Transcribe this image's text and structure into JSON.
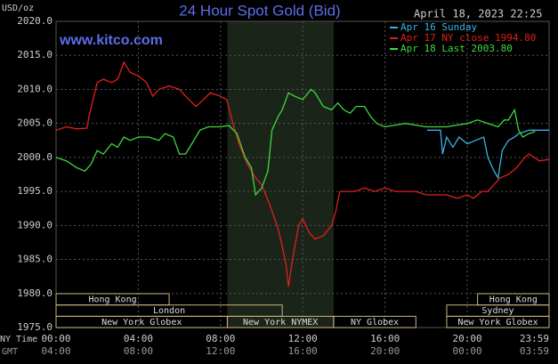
{
  "chart_data": {
    "type": "line",
    "title": "24 Hour Spot Gold (Bid)",
    "timestamp": "April 18, 2023 22:25",
    "y_label": "USD/oz",
    "source": "www.kitco.com",
    "x_label": "NY Time",
    "x2_label": "GMT",
    "xlim": [
      0,
      23.98
    ],
    "xticks": [
      {
        "value": 0,
        "label": "00:00"
      },
      {
        "value": 4,
        "label": "04:00"
      },
      {
        "value": 8,
        "label": "08:00"
      },
      {
        "value": 12,
        "label": "12:00"
      },
      {
        "value": 16,
        "label": "16:00"
      },
      {
        "value": 20,
        "label": "20:00"
      },
      {
        "value": 23.98,
        "label": "23:59"
      }
    ],
    "x2ticklabels": [
      "04:00",
      "08:00",
      "12:00",
      "16:00",
      "20:00",
      "00:00",
      "03:59"
    ],
    "ylim": [
      1975,
      2020
    ],
    "yticks": [
      {
        "value": 1975,
        "label": "1975.0"
      },
      {
        "value": 1980,
        "label": "1980.0"
      },
      {
        "value": 1985,
        "label": "1985.0"
      },
      {
        "value": 1990,
        "label": "1990.0"
      },
      {
        "value": 1995,
        "label": "1995.0"
      },
      {
        "value": 2000,
        "label": "2000.0"
      },
      {
        "value": 2005,
        "label": "2005.0"
      },
      {
        "value": 2010,
        "label": "2010.0"
      },
      {
        "value": 2015,
        "label": "2015.0"
      },
      {
        "value": 2020,
        "label": "2020.0"
      }
    ],
    "grid": true,
    "shade": [
      8.33,
      13.5
    ],
    "series": [
      {
        "name": "Apr 16 Sunday",
        "color": "#33b5e5",
        "x": [
          18.05,
          18.7,
          18.8,
          19,
          19.3,
          19.6,
          20,
          20.4,
          20.8,
          21,
          21.3,
          21.5,
          21.7,
          22,
          22.3,
          22.5,
          23,
          23.5,
          23.98
        ],
        "values": [
          2004,
          2004,
          2000.5,
          2003,
          2001.5,
          2003,
          2002,
          2002.5,
          2003,
          2000,
          1998,
          1997,
          2001,
          2002.5,
          2003,
          2003.5,
          2004,
          2004,
          2004
        ]
      },
      {
        "name": "Apr 17 NY close 1994.80",
        "color": "#e0201b",
        "x": [
          0,
          0.5,
          1,
          1.5,
          1.6,
          2,
          2.3,
          2.7,
          3,
          3.3,
          3.6,
          4,
          4.4,
          4.7,
          5,
          5.5,
          6,
          6.3,
          6.8,
          7,
          7.5,
          8,
          8.3,
          8.6,
          8.9,
          9.3,
          9.7,
          10,
          10.4,
          10.8,
          11,
          11.2,
          11.3,
          11.5,
          11.8,
          12,
          12.3,
          12.6,
          13,
          13.4,
          13.6,
          13.8,
          14,
          14.5,
          15,
          15.5,
          16,
          16.5,
          17,
          17.5,
          18,
          18.5,
          19,
          19.5,
          20,
          20.3,
          20.7,
          21,
          21.3,
          21.6,
          22,
          22.4,
          22.8,
          23,
          23.5,
          23.98
        ],
        "values": [
          2004,
          2004.5,
          2004.2,
          2004.3,
          2006,
          2011,
          2011.5,
          2011,
          2011.5,
          2014,
          2012.5,
          2012,
          2011,
          2009,
          2010,
          2010.5,
          2010,
          2009,
          2007.5,
          2008,
          2009.5,
          2009,
          2008.5,
          2005,
          2002,
          1999,
          1997,
          1996,
          1993,
          1989.5,
          1987,
          1984,
          1981,
          1985,
          1990,
          1991,
          1989,
          1988,
          1988.5,
          1990,
          1992,
          1995,
          1995,
          1995,
          1995.5,
          1995,
          1995.5,
          1995,
          1995,
          1995,
          1994.5,
          1994.5,
          1994.5,
          1994,
          1994.5,
          1994,
          1995,
          1995,
          1996,
          1997,
          1997.5,
          1998.5,
          2000,
          2000.5,
          1999.5,
          1999.7
        ]
      },
      {
        "name": "Apr 18 Last 2003.80",
        "color": "#3fd83f",
        "x": [
          0,
          0.5,
          1,
          1.4,
          1.7,
          2,
          2.3,
          2.7,
          3,
          3.3,
          3.6,
          4,
          4.5,
          5,
          5.3,
          5.7,
          6,
          6.3,
          6.6,
          7,
          7.4,
          8,
          8.4,
          8.8,
          9.2,
          9.5,
          9.7,
          10,
          10.3,
          10.5,
          10.8,
          11,
          11.3,
          11.6,
          12,
          12.4,
          12.6,
          13,
          13.4,
          13.7,
          14,
          14.3,
          14.6,
          15,
          15.3,
          15.6,
          16,
          17,
          18,
          19,
          20,
          20.5,
          21,
          21.5,
          21.8,
          22,
          22.3,
          22.5,
          22.7,
          23,
          23.3
        ],
        "values": [
          2000,
          1999.5,
          1998.5,
          1998,
          1999,
          2001,
          2000.5,
          2002,
          2001.5,
          2003,
          2002.5,
          2003,
          2003,
          2002.5,
          2003.5,
          2003,
          2000.5,
          2000.5,
          2002,
          2004,
          2004.5,
          2004.5,
          2004.7,
          2003.5,
          2000,
          1998.5,
          1994.5,
          1995.5,
          1998,
          2004,
          2006,
          2007,
          2009.5,
          2009,
          2008.5,
          2010,
          2009.5,
          2007.5,
          2007,
          2008,
          2007,
          2006.5,
          2007.5,
          2007.5,
          2006,
          2005,
          2004.5,
          2005,
          2004.5,
          2004.5,
          2005,
          2005.5,
          2005,
          2004.5,
          2005.5,
          2005.5,
          2007,
          2004,
          2003,
          2003.5,
          2003.8
        ]
      }
    ],
    "sessions": [
      {
        "name": "Hong Kong",
        "row": 0,
        "start": 0,
        "end": 5.5
      },
      {
        "name": "Hong Kong",
        "row": 0,
        "start": 20.5,
        "end": 23.98
      },
      {
        "name": "London",
        "row": 1,
        "start": 0,
        "end": 11
      },
      {
        "name": "Sydney",
        "row": 1,
        "start": 19,
        "end": 23.98
      },
      {
        "name": "New York Globex",
        "row": 2,
        "start": 0,
        "end": 8.33
      },
      {
        "name": "New York NYMEX",
        "row": 2,
        "start": 8.33,
        "end": 13.5
      },
      {
        "name": "NY Globex",
        "row": 2,
        "start": 13.5,
        "end": 17.5
      },
      {
        "name": "New York Globex",
        "row": 2,
        "start": 19,
        "end": 23.98
      }
    ]
  }
}
